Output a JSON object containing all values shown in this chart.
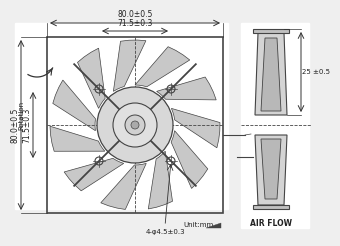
{
  "bg_color": "#efefef",
  "line_color": "#444444",
  "dim_color": "#333333",
  "text_color": "#222222",
  "title_top": "80.0±0.5",
  "title_top2": "71.5±0.3",
  "label_left1": "80.0±0.5",
  "label_left2": "71.5±0.3",
  "label_bottom": "4-φ4.5±0.3",
  "label_right_top": "25 ±0.5",
  "label_airflow": "AIR FLOW",
  "label_unit": "Unit:mm",
  "label_rotation": "Rotation"
}
